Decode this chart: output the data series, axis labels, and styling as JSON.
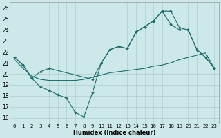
{
  "xlabel": "Humidex (Indice chaleur)",
  "background_color": "#cde8e8",
  "line_color": "#1a6b6b",
  "grid_color": "#aecece",
  "xlim": [
    -0.5,
    23.5
  ],
  "ylim": [
    15.5,
    26.5
  ],
  "xticks": [
    0,
    1,
    2,
    3,
    4,
    5,
    6,
    7,
    8,
    9,
    10,
    11,
    12,
    13,
    14,
    15,
    16,
    17,
    18,
    19,
    20,
    21,
    22,
    23
  ],
  "yticks": [
    16,
    17,
    18,
    19,
    20,
    21,
    22,
    23,
    24,
    25,
    26
  ],
  "line1_x": [
    0,
    1,
    2,
    3,
    4,
    5,
    6,
    7,
    8,
    9,
    10,
    11,
    12,
    13,
    14,
    15,
    16,
    17,
    18,
    19,
    20,
    21,
    22,
    23
  ],
  "line1_y": [
    21.5,
    20.8,
    19.6,
    18.8,
    18.5,
    18.1,
    17.8,
    16.5,
    16.1,
    18.3,
    21.0,
    22.2,
    22.5,
    22.3,
    23.8,
    24.3,
    24.8,
    25.7,
    25.7,
    24.2,
    24.0,
    22.2,
    21.5,
    20.5
  ],
  "line2_x": [
    0,
    1,
    2,
    3,
    4,
    9,
    10,
    11,
    12,
    13,
    14,
    15,
    16,
    17,
    18,
    19,
    20,
    21,
    22,
    23
  ],
  "line2_y": [
    21.5,
    20.8,
    19.6,
    20.2,
    20.5,
    19.5,
    21.0,
    22.2,
    22.5,
    22.3,
    23.8,
    24.3,
    24.8,
    25.7,
    24.5,
    24.0,
    24.0,
    22.2,
    21.5,
    20.5
  ],
  "line3_x": [
    0,
    1,
    2,
    3,
    4,
    5,
    6,
    7,
    8,
    9,
    10,
    11,
    12,
    13,
    14,
    15,
    16,
    17,
    18,
    19,
    20,
    21,
    22,
    23
  ],
  "line3_y": [
    21.3,
    20.5,
    19.8,
    19.5,
    19.4,
    19.4,
    19.4,
    19.4,
    19.5,
    19.7,
    19.9,
    20.1,
    20.2,
    20.3,
    20.4,
    20.5,
    20.7,
    20.8,
    21.0,
    21.3,
    21.5,
    21.7,
    21.9,
    20.5
  ]
}
